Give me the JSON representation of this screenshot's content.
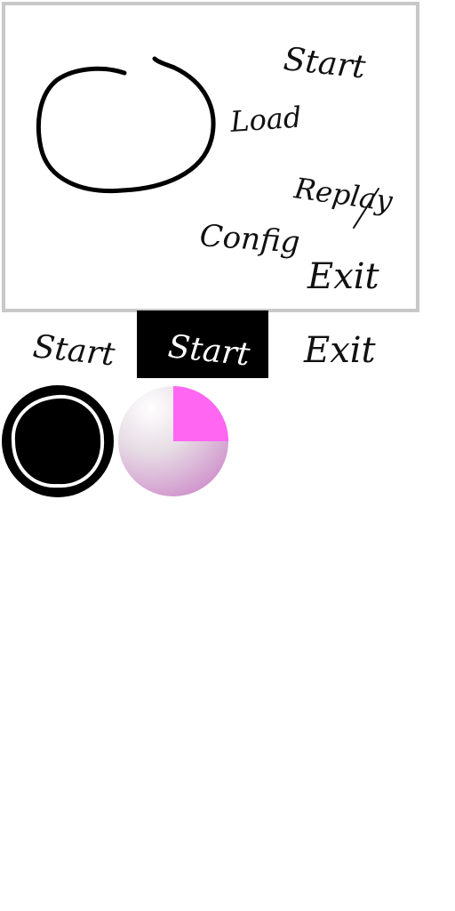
{
  "menu": {
    "start_label": "Start",
    "load_label": "Load",
    "replay_label": "Replay",
    "config_label": "Config",
    "exit_label": "Exit"
  },
  "button_states": {
    "normal_label": "Start",
    "active_label": "Start",
    "exit_label": "Exit"
  },
  "colors": {
    "panel_border": "#c8c8c8",
    "ink": "#111111",
    "active_background": "#000000",
    "active_ink": "#ffffff",
    "progress_fill": "#ff66f2",
    "progress_track": "#d1c0cf"
  },
  "progress": {
    "value_fraction": 0.25
  },
  "icons": {
    "circle_stroke": "hand-drawn-circle-icon",
    "cursor_sprite": "circle-cursor-icon",
    "progress_sprite": "progress-pie-icon"
  }
}
